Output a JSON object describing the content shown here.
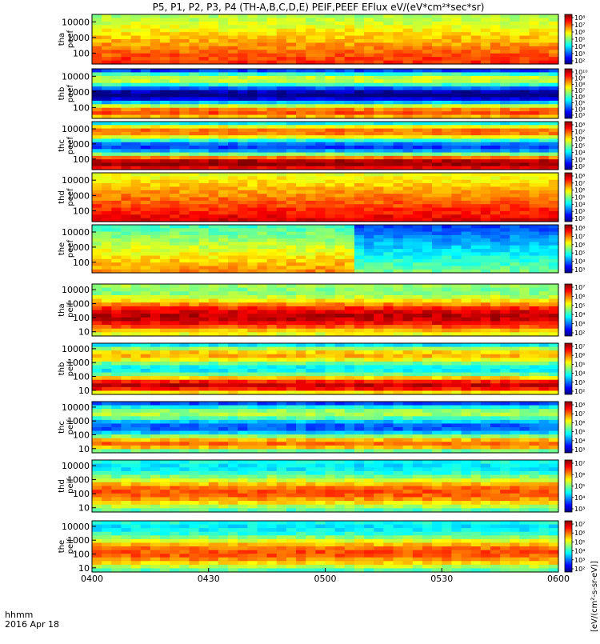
{
  "title": "P5, P1, P2, P3, P4 (TH-A,B,C,D,E) PEIF,PEEF EFlux eV/(eV*cm²*sec*sr)",
  "time_label": "hhmm",
  "date_label": "2016 Apr 18",
  "colorbar_unit": "[eV/(cm²-s-sr-eV)]",
  "chart_data": {
    "type": "heatmap",
    "x_ticks": [
      "0400",
      "0430",
      "0500",
      "0530",
      "0600"
    ],
    "x_range_minutes": [
      0,
      120
    ],
    "y_scale": "log",
    "panels": [
      {
        "label": "tha peef",
        "y_ticks": [
          "10000",
          "1000",
          "100"
        ],
        "y_range": [
          20,
          30000
        ],
        "cbar_ticks": [
          "10⁸",
          "10⁷",
          "10⁶",
          "10⁵",
          "10⁴",
          "10³",
          "10²"
        ],
        "cbar_range": [
          2,
          8
        ],
        "colormap": "jet"
      },
      {
        "label": "thb peef",
        "y_ticks": [
          "10000",
          "1000",
          "100"
        ],
        "y_range": [
          20,
          30000
        ],
        "cbar_ticks": [
          "10¹⁰",
          "10⁹",
          "10⁸",
          "10⁷",
          "10⁶",
          "10⁵",
          "10⁴",
          "10³"
        ],
        "cbar_range": [
          3,
          10
        ],
        "colormap": "jet"
      },
      {
        "label": "thc peef",
        "y_ticks": [
          "10000",
          "1000",
          "100"
        ],
        "y_range": [
          20,
          30000
        ],
        "cbar_ticks": [
          "10⁸",
          "10⁷",
          "10⁶",
          "10⁵",
          "10⁴",
          "10³",
          "10²"
        ],
        "cbar_range": [
          2,
          8
        ],
        "colormap": "jet"
      },
      {
        "label": "thd peef",
        "y_ticks": [
          "10000",
          "1000",
          "100"
        ],
        "y_range": [
          20,
          30000
        ],
        "cbar_ticks": [
          "10⁸",
          "10⁷",
          "10⁶",
          "10⁵",
          "10⁴",
          "10³",
          "10²"
        ],
        "cbar_range": [
          2,
          8
        ],
        "colormap": "jet"
      },
      {
        "label": "the peef",
        "y_ticks": [
          "10000",
          "1000",
          "100"
        ],
        "y_range": [
          20,
          30000
        ],
        "cbar_ticks": [
          "10⁸",
          "10⁷",
          "10⁶",
          "10⁵",
          "10⁴",
          "10³"
        ],
        "cbar_range": [
          3,
          8
        ],
        "colormap": "jet"
      },
      {
        "label": "tha peif",
        "y_ticks": [
          "10000",
          "1000",
          "100",
          "10"
        ],
        "y_range": [
          5,
          25000
        ],
        "cbar_ticks": [
          "10⁷",
          "10⁶",
          "10⁵",
          "10⁴",
          "10³",
          "10²"
        ],
        "cbar_range": [
          2,
          7
        ],
        "colormap": "jet"
      },
      {
        "label": "thb peif",
        "y_ticks": [
          "10000",
          "1000",
          "100",
          "10"
        ],
        "y_range": [
          5,
          25000
        ],
        "cbar_ticks": [
          "10⁷",
          "10⁶",
          "10⁵",
          "10⁴",
          "10³",
          "10²"
        ],
        "cbar_range": [
          2,
          7
        ],
        "colormap": "jet"
      },
      {
        "label": "thc peif",
        "y_ticks": [
          "10000",
          "1000",
          "100",
          "10"
        ],
        "y_range": [
          5,
          25000
        ],
        "cbar_ticks": [
          "10⁸",
          "10⁷",
          "10⁶",
          "10⁵",
          "10⁴",
          "10³"
        ],
        "cbar_range": [
          3,
          8
        ],
        "colormap": "jet"
      },
      {
        "label": "thd peif",
        "y_ticks": [
          "10000",
          "1000",
          "100",
          "10"
        ],
        "y_range": [
          5,
          25000
        ],
        "cbar_ticks": [
          "10⁷",
          "10⁶",
          "10⁵",
          "10⁴",
          "10³"
        ],
        "cbar_range": [
          3,
          7
        ],
        "colormap": "jet"
      },
      {
        "label": "the peif",
        "y_ticks": [
          "10000",
          "1000",
          "100",
          "10"
        ],
        "y_range": [
          5,
          25000
        ],
        "cbar_ticks": [
          "10⁷",
          "10⁶",
          "10⁵",
          "10⁴",
          "10³",
          "10²"
        ],
        "cbar_range": [
          2,
          7
        ],
        "colormap": "jet"
      }
    ],
    "series_fill_values": {
      "tha peef": 6.2,
      "thb peef": 5.4,
      "thc peef": 5.2,
      "thd peef": 6.6,
      "the peef": 6.0,
      "tha peif": 5.6,
      "thb peif": 4.7,
      "thc peif": 4.9,
      "thd peif": 5.3,
      "the peif": 4.9
    },
    "grid": false
  },
  "colors": {
    "axis": "#000000",
    "colormap_stops": [
      "#00007f",
      "#0000ff",
      "#007fff",
      "#00ffff",
      "#7fff7f",
      "#ffff00",
      "#ff7f00",
      "#ff0000",
      "#7f0000"
    ]
  }
}
